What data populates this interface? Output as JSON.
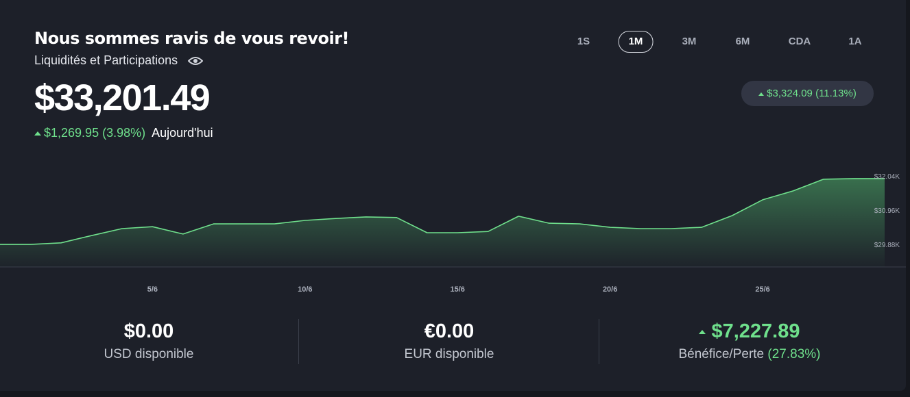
{
  "header": {
    "title": "Nous sommes ravis de vous revoir!",
    "subtitle": "Liquidités et Participations",
    "balance": "$33,201.49",
    "change": "$1,269.95 (3.98%)",
    "change_period": "Aujourd'hui"
  },
  "periods": {
    "options": [
      "1S",
      "1M",
      "3M",
      "6M",
      "CDA",
      "1A"
    ],
    "active_index": 1,
    "change": "$3,324.09 (11.13%)"
  },
  "chart_data": {
    "type": "area",
    "color": "#6fe08c",
    "categories": [
      null,
      null,
      null,
      null,
      null,
      "5/6",
      null,
      null,
      null,
      null,
      "10/6",
      null,
      null,
      null,
      null,
      "15/6",
      null,
      null,
      null,
      null,
      "20/6",
      null,
      null,
      null,
      null,
      "25/6",
      null,
      null,
      null,
      null
    ],
    "series": [
      {
        "values": [
          29910,
          29910,
          29960,
          30190,
          30410,
          30470,
          30240,
          30560,
          30560,
          30560,
          30670,
          30730,
          30780,
          30760,
          30280,
          30280,
          30320,
          30800,
          30580,
          30560,
          30450,
          30410,
          30410,
          30450,
          30820,
          31320,
          31600,
          31970,
          31990,
          31990
        ]
      }
    ],
    "ylim": [
      29200,
      32700
    ],
    "yticks": [
      {
        "value": 29880,
        "label": "$29.88K"
      },
      {
        "value": 30960,
        "label": "$30.96K"
      },
      {
        "value": 32040,
        "label": "$32.04K"
      }
    ]
  },
  "stats": [
    {
      "value": "$0.00",
      "label": "USD disponible"
    },
    {
      "value": "€0.00",
      "label": "EUR disponible"
    },
    {
      "value": "$7,227.89",
      "label": "Bénéfice/Perte",
      "percent": "(27.83%)"
    }
  ]
}
